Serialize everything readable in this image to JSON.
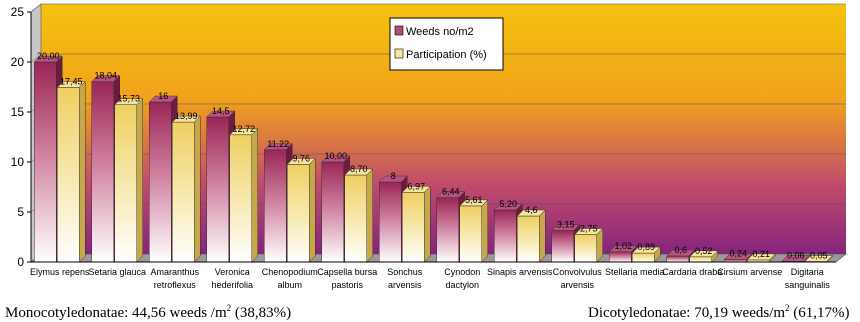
{
  "chart_data": {
    "type": "bar",
    "title": "",
    "xlabel": "",
    "ylabel": "",
    "ylim": [
      0,
      25
    ],
    "yticks": [
      "0",
      "5",
      "10",
      "15",
      "20",
      "25"
    ],
    "grid": true,
    "legend_position": "top-center",
    "categories": [
      [
        "Elymus repens"
      ],
      [
        "Setaria glauca"
      ],
      [
        "Amaranthus",
        "retroflexus"
      ],
      [
        "Veronica",
        "hederifolia"
      ],
      [
        "Chenopodium",
        "album"
      ],
      [
        "Capsella bursa",
        "pastoris"
      ],
      [
        "Sonchus",
        "arvensis"
      ],
      [
        "Cynodon",
        "dactylon"
      ],
      [
        "Sinapis arvensis"
      ],
      [
        "Convolvulus",
        "arvensis"
      ],
      [
        "Stellaria media"
      ],
      [
        "Cardaria draba"
      ],
      [
        "Cirsium arvense"
      ],
      [
        "Digitaria",
        "sanguinalis"
      ]
    ],
    "series": [
      {
        "name": "Weeds no/m2",
        "color": "#9c2a58",
        "values": [
          20.0,
          18.04,
          16.0,
          14.5,
          11.22,
          10.0,
          8.0,
          6.44,
          5.2,
          3.15,
          1.02,
          0.6,
          0.24,
          0.06
        ],
        "labels": [
          "20,00",
          "18,04",
          "16",
          "14,5",
          "11,22",
          "10,00",
          "8",
          "6,44",
          "5,20",
          "3,15",
          "1,02",
          "0,6",
          "0,24",
          "0,06"
        ]
      },
      {
        "name": "Participation (%)",
        "color": "#f4e08a",
        "values": [
          17.45,
          15.73,
          13.99,
          12.72,
          9.76,
          8.7,
          6.97,
          5.61,
          4.6,
          2.75,
          0.89,
          0.52,
          0.21,
          0.05
        ],
        "labels": [
          "17,45",
          "15,73",
          "13,99",
          "12,72",
          "9,76",
          "8,70",
          "6,97",
          "5,61",
          "4,6",
          "2,75",
          "0,89",
          "0,52",
          "0,21",
          "0,05"
        ]
      }
    ]
  },
  "captions": {
    "left_text": "Monocotyledonatae: 44,56 weeds /m",
    "left_sup": "2",
    "left_suffix": " (38,83%)",
    "right_text": "Dicotyledonatae: 70,19 weeds/m",
    "right_sup": "2",
    "right_suffix": " (61,17%)"
  }
}
